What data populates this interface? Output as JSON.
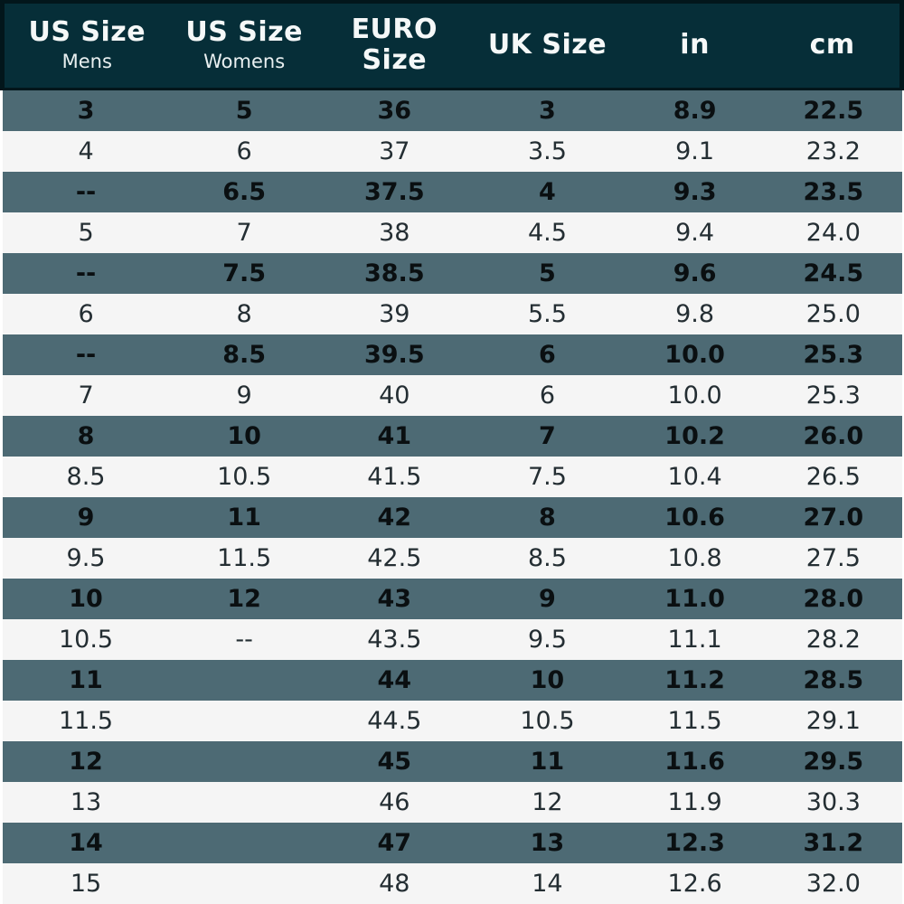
{
  "colors": {
    "header_bg": "#062e38",
    "header_border": "#02161b",
    "header_text": "#f5f8f8",
    "header_subtext": "#e9f0f1",
    "row_alt_bg": "#4d6a74",
    "row_alt_text": "#0a0f11",
    "row_bg": "#f5f5f5",
    "row_text": "#242e33"
  },
  "chart_data": {
    "type": "table",
    "columns": [
      {
        "title": "US Size",
        "subtitle": "Mens"
      },
      {
        "title": "US Size",
        "subtitle": "Womens"
      },
      {
        "title": "EURO Size",
        "subtitle": ""
      },
      {
        "title": "UK Size",
        "subtitle": ""
      },
      {
        "title": "in",
        "subtitle": ""
      },
      {
        "title": "cm",
        "subtitle": ""
      }
    ],
    "rows": [
      [
        "3",
        "5",
        "36",
        "3",
        "8.9",
        "22.5"
      ],
      [
        "4",
        "6",
        "37",
        "3.5",
        "9.1",
        "23.2"
      ],
      [
        "--",
        "6.5",
        "37.5",
        "4",
        "9.3",
        "23.5"
      ],
      [
        "5",
        "7",
        "38",
        "4.5",
        "9.4",
        "24.0"
      ],
      [
        "--",
        "7.5",
        "38.5",
        "5",
        "9.6",
        "24.5"
      ],
      [
        "6",
        "8",
        "39",
        "5.5",
        "9.8",
        "25.0"
      ],
      [
        "--",
        "8.5",
        "39.5",
        "6",
        "10.0",
        "25.3"
      ],
      [
        "7",
        "9",
        "40",
        "6",
        "10.0",
        "25.3"
      ],
      [
        "8",
        "10",
        "41",
        "7",
        "10.2",
        "26.0"
      ],
      [
        "8.5",
        "10.5",
        "41.5",
        "7.5",
        "10.4",
        "26.5"
      ],
      [
        "9",
        "11",
        "42",
        "8",
        "10.6",
        "27.0"
      ],
      [
        "9.5",
        "11.5",
        "42.5",
        "8.5",
        "10.8",
        "27.5"
      ],
      [
        "10",
        "12",
        "43",
        "9",
        "11.0",
        "28.0"
      ],
      [
        "10.5",
        "--",
        "43.5",
        "9.5",
        "11.1",
        "28.2"
      ],
      [
        "11",
        "",
        "44",
        "10",
        "11.2",
        "28.5"
      ],
      [
        "11.5",
        "",
        "44.5",
        "10.5",
        "11.5",
        "29.1"
      ],
      [
        "12",
        "",
        "45",
        "11",
        "11.6",
        "29.5"
      ],
      [
        "13",
        "",
        "46",
        "12",
        "11.9",
        "30.3"
      ],
      [
        "14",
        "",
        "47",
        "13",
        "12.3",
        "31.2"
      ],
      [
        "15",
        "",
        "48",
        "14",
        "12.6",
        "32.0"
      ]
    ]
  }
}
